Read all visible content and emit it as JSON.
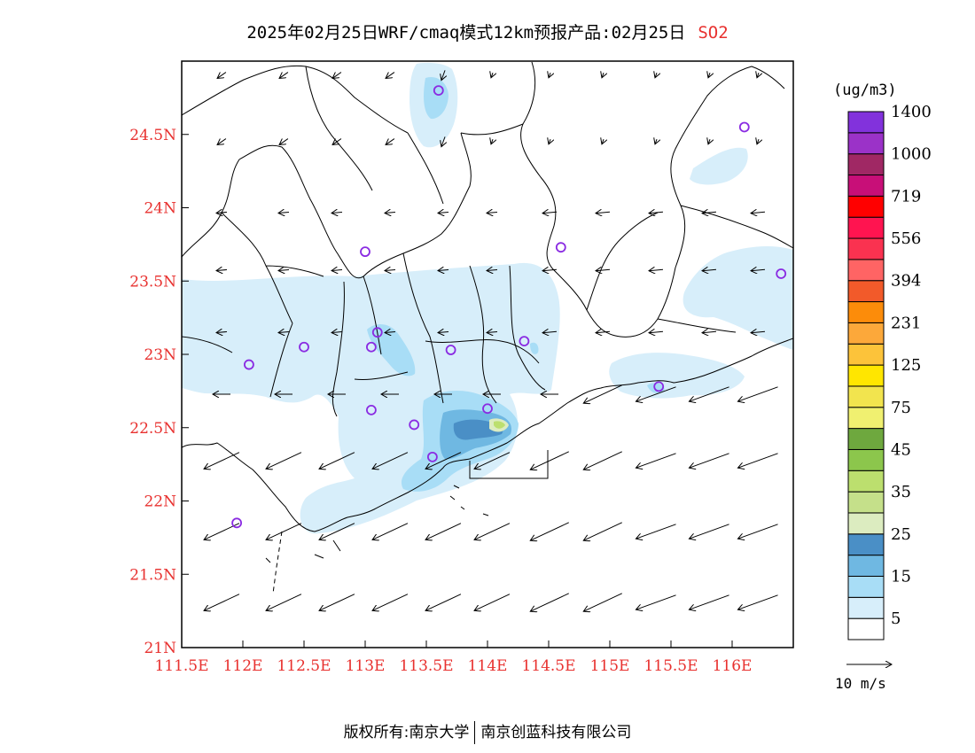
{
  "title": {
    "main": "2025年02月25日WRF/cmaq模式12km预报产品:02月25日",
    "species": "SO2"
  },
  "map": {
    "lat_ticks": [
      {
        "value": 24.5,
        "label": "24.5N"
      },
      {
        "value": 24.0,
        "label": "24N"
      },
      {
        "value": 23.5,
        "label": "23.5N"
      },
      {
        "value": 23.0,
        "label": "23N"
      },
      {
        "value": 22.5,
        "label": "22.5N"
      },
      {
        "value": 22.0,
        "label": "22N"
      },
      {
        "value": 21.5,
        "label": "21.5N"
      },
      {
        "value": 21.0,
        "label": "21N"
      }
    ],
    "lon_ticks": [
      {
        "value": 111.5,
        "label": "111.5E"
      },
      {
        "value": 112.0,
        "label": "112E"
      },
      {
        "value": 112.5,
        "label": "112.5E"
      },
      {
        "value": 113.0,
        "label": "113E"
      },
      {
        "value": 113.5,
        "label": "113.5E"
      },
      {
        "value": 114.0,
        "label": "114E"
      },
      {
        "value": 114.5,
        "label": "114.5E"
      },
      {
        "value": 115.0,
        "label": "115E"
      },
      {
        "value": 115.5,
        "label": "115.5E"
      },
      {
        "value": 116.0,
        "label": "116E"
      }
    ],
    "extent": {
      "lon_min": 111.5,
      "lon_max": 116.5,
      "lat_min": 21.0,
      "lat_max": 25.0
    },
    "stations": [
      {
        "lon": 113.6,
        "lat": 24.8
      },
      {
        "lon": 116.1,
        "lat": 24.55
      },
      {
        "lon": 113.0,
        "lat": 23.7
      },
      {
        "lon": 114.6,
        "lat": 23.73
      },
      {
        "lon": 116.4,
        "lat": 23.55
      },
      {
        "lon": 113.1,
        "lat": 23.15
      },
      {
        "lon": 112.5,
        "lat": 23.05
      },
      {
        "lon": 113.05,
        "lat": 23.05
      },
      {
        "lon": 113.7,
        "lat": 23.03
      },
      {
        "lon": 114.3,
        "lat": 23.09
      },
      {
        "lon": 112.05,
        "lat": 22.93
      },
      {
        "lon": 115.4,
        "lat": 22.78
      },
      {
        "lon": 113.05,
        "lat": 22.62
      },
      {
        "lon": 113.4,
        "lat": 22.52
      },
      {
        "lon": 114.0,
        "lat": 22.63
      },
      {
        "lon": 113.55,
        "lat": 22.3
      },
      {
        "lon": 111.95,
        "lat": 21.85
      }
    ]
  },
  "colorbar": {
    "unit": "(ug/m3)",
    "colors": [
      "#ffffff",
      "#d7eefa",
      "#a8ddf6",
      "#6fb8e2",
      "#4a8fc6",
      "#dcecc0",
      "#c5e08a",
      "#bcdf6e",
      "#8cc64c",
      "#6ea83e",
      "#f0f070",
      "#f2e44e",
      "#ffe600",
      "#fcc33a",
      "#fca83a",
      "#fc8c0a",
      "#f25a2a",
      "#ff6464",
      "#fa3250",
      "#ff1450",
      "#ff0000",
      "#c80f78",
      "#a02864",
      "#9b32c8",
      "#8232dc"
    ],
    "labels": [
      "5",
      "15",
      "25",
      "35",
      "45",
      "75",
      "125",
      "231",
      "394",
      "556",
      "719",
      "1000",
      "1400"
    ]
  },
  "wind_reference": {
    "label": "10 m/s"
  },
  "footer": {
    "left": "版权所有:南京大学",
    "right": "南京创蓝科技有限公司"
  }
}
